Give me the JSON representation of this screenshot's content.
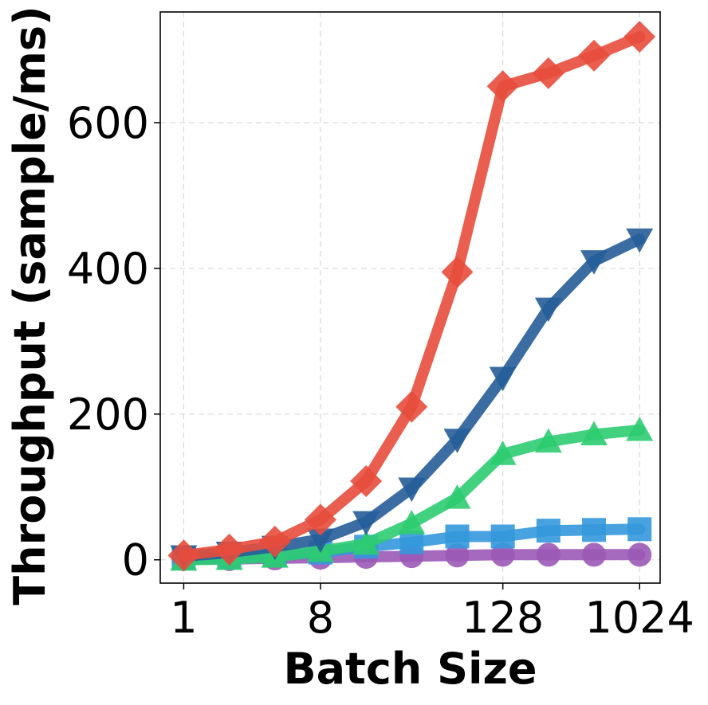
{
  "chart_data": {
    "type": "line",
    "title": "",
    "xlabel": "Batch Size",
    "ylabel": "Throughput (sample/ms)",
    "x_scale": "log2",
    "x": [
      1,
      2,
      4,
      8,
      16,
      32,
      64,
      128,
      256,
      512,
      1024
    ],
    "xticks": [
      1,
      8,
      128,
      1024
    ],
    "xtick_labels": [
      "1",
      "8",
      "128",
      "1024"
    ],
    "xlim": [
      0.7,
      1400
    ],
    "ylim": [
      -32,
      752
    ],
    "yticks": [
      0,
      200,
      400,
      600
    ],
    "ytick_labels": [
      "0",
      "200",
      "400",
      "600"
    ],
    "grid": true,
    "series": [
      {
        "color": "#9b59b6",
        "marker": "circle",
        "values": [
          1,
          1,
          2,
          3,
          4,
          5,
          6,
          7,
          7,
          7,
          7
        ]
      },
      {
        "color": "#3498db",
        "marker": "square",
        "values": [
          2,
          3,
          6,
          10,
          18,
          24,
          32,
          32,
          40,
          41,
          42
        ]
      },
      {
        "color": "#2ecc71",
        "marker": "triangle-up",
        "values": [
          0,
          1,
          4,
          12,
          22,
          50,
          85,
          145,
          162,
          172,
          178
        ]
      },
      {
        "color": "#265d99",
        "marker": "triangle-down",
        "values": [
          5,
          10,
          18,
          28,
          52,
          98,
          165,
          250,
          345,
          410,
          440
        ]
      },
      {
        "color": "#e74c3c",
        "marker": "diamond",
        "values": [
          6,
          14,
          25,
          55,
          108,
          210,
          395,
          650,
          668,
          692,
          718
        ]
      }
    ]
  }
}
